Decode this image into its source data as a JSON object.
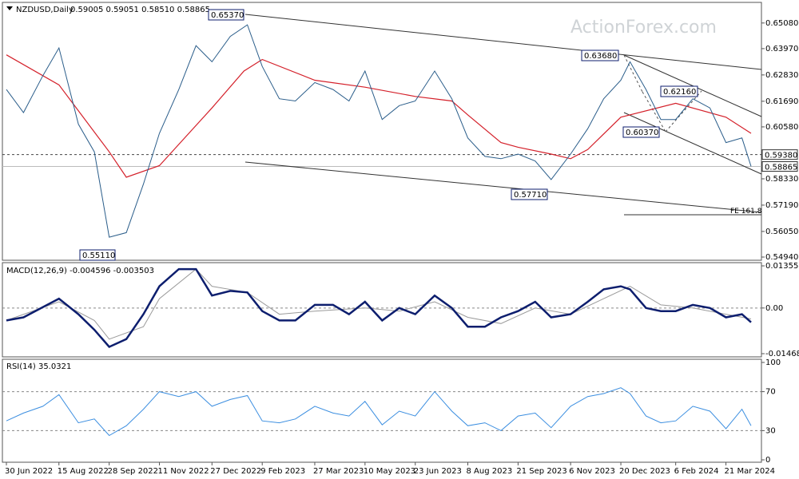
{
  "header": {
    "symbol": "NZDUSD,Daily",
    "ohlc": "0.59005 0.59051 0.58510 0.58865",
    "watermark": "ActionForex.com"
  },
  "chart_data": {
    "type": "line",
    "price_axis": [
      "0.65080",
      "0.63970",
      "0.62830",
      "0.61690",
      "0.60580",
      "0.59380",
      "0.58865",
      "0.58330",
      "0.57190",
      "0.56050",
      "0.54940"
    ],
    "price_ylim": [
      0.5494,
      0.658
    ],
    "current_price": "0.58865",
    "dashed_level": "0.59380",
    "x_ticks": [
      "30 Jun 2022",
      "15 Aug 2022",
      "28 Sep 2022",
      "11 Nov 2022",
      "27 Dec 2022",
      "9 Feb 2023",
      "27 Mar 2023",
      "10 May 2023",
      "23 Jun 2023",
      "8 Aug 2023",
      "21 Sep 2023",
      "6 Nov 2023",
      "20 Dec 2023",
      "6 Feb 2024",
      "21 Mar 2024"
    ],
    "annotations": [
      {
        "text": "0.65370",
        "value": 0.6537
      },
      {
        "text": "0.55110",
        "value": 0.5511
      },
      {
        "text": "0.63680",
        "value": 0.6368
      },
      {
        "text": "0.62160",
        "value": 0.6216
      },
      {
        "text": "0.60370",
        "value": 0.6037
      },
      {
        "text": "0.57710",
        "value": 0.5771
      },
      {
        "text": "FE 161.8",
        "value": 0.5685
      }
    ],
    "price_series": [
      {
        "date": "30 Jun 2022",
        "value": 0.622
      },
      {
        "date": "15 Jul 2022",
        "value": 0.612
      },
      {
        "date": "1 Aug 2022",
        "value": 0.628
      },
      {
        "date": "15 Aug 2022",
        "value": 0.64
      },
      {
        "date": "1 Sep 2022",
        "value": 0.607
      },
      {
        "date": "15 Sep 2022",
        "value": 0.595
      },
      {
        "date": "28 Sep 2022",
        "value": 0.558
      },
      {
        "date": "13 Oct 2022",
        "value": 0.56
      },
      {
        "date": "28 Oct 2022",
        "value": 0.581
      },
      {
        "date": "11 Nov 2022",
        "value": 0.603
      },
      {
        "date": "28 Nov 2022",
        "value": 0.622
      },
      {
        "date": "13 Dec 2022",
        "value": 0.641
      },
      {
        "date": "27 Dec 2022",
        "value": 0.634
      },
      {
        "date": "12 Jan 2023",
        "value": 0.645
      },
      {
        "date": "27 Jan 2023",
        "value": 0.65
      },
      {
        "date": "9 Feb 2023",
        "value": 0.632
      },
      {
        "date": "24 Feb 2023",
        "value": 0.618
      },
      {
        "date": "10 Mar 2023",
        "value": 0.617
      },
      {
        "date": "27 Mar 2023",
        "value": 0.625
      },
      {
        "date": "12 Apr 2023",
        "value": 0.622
      },
      {
        "date": "26 Apr 2023",
        "value": 0.617
      },
      {
        "date": "10 May 2023",
        "value": 0.63
      },
      {
        "date": "25 May 2023",
        "value": 0.609
      },
      {
        "date": "9 Jun 2023",
        "value": 0.615
      },
      {
        "date": "23 Jun 2023",
        "value": 0.617
      },
      {
        "date": "10 Jul 2023",
        "value": 0.63
      },
      {
        "date": "25 Jul 2023",
        "value": 0.618
      },
      {
        "date": "8 Aug 2023",
        "value": 0.601
      },
      {
        "date": "23 Aug 2023",
        "value": 0.593
      },
      {
        "date": "6 Sep 2023",
        "value": 0.592
      },
      {
        "date": "21 Sep 2023",
        "value": 0.594
      },
      {
        "date": "6 Oct 2023",
        "value": 0.591
      },
      {
        "date": "20 Oct 2023",
        "value": 0.583
      },
      {
        "date": "6 Nov 2023",
        "value": 0.594
      },
      {
        "date": "21 Nov 2023",
        "value": 0.605
      },
      {
        "date": "5 Dec 2023",
        "value": 0.618
      },
      {
        "date": "20 Dec 2023",
        "value": 0.626
      },
      {
        "date": "28 Dec 2023",
        "value": 0.634
      },
      {
        "date": "11 Jan 2024",
        "value": 0.622
      },
      {
        "date": "24 Jan 2024",
        "value": 0.609
      },
      {
        "date": "6 Feb 2024",
        "value": 0.609
      },
      {
        "date": "21 Feb 2024",
        "value": 0.618
      },
      {
        "date": "7 Mar 2024",
        "value": 0.614
      },
      {
        "date": "21 Mar 2024",
        "value": 0.599
      },
      {
        "date": "4 Apr 2024",
        "value": 0.601
      },
      {
        "date": "12 Apr 2024",
        "value": 0.5887
      }
    ],
    "ma_series": [
      {
        "date": "30 Jun 2022",
        "value": 0.637
      },
      {
        "date": "15 Aug 2022",
        "value": 0.624
      },
      {
        "date": "28 Sep 2022",
        "value": 0.595
      },
      {
        "date": "13 Oct 2022",
        "value": 0.584
      },
      {
        "date": "11 Nov 2022",
        "value": 0.589
      },
      {
        "date": "27 Dec 2022",
        "value": 0.614
      },
      {
        "date": "24 Jan 2023",
        "value": 0.63
      },
      {
        "date": "9 Feb 2023",
        "value": 0.635
      },
      {
        "date": "27 Mar 2023",
        "value": 0.626
      },
      {
        "date": "10 May 2023",
        "value": 0.623
      },
      {
        "date": "23 Jun 2023",
        "value": 0.619
      },
      {
        "date": "25 Jul 2023",
        "value": 0.617
      },
      {
        "date": "8 Aug 2023",
        "value": 0.611
      },
      {
        "date": "6 Sep 2023",
        "value": 0.599
      },
      {
        "date": "21 Sep 2023",
        "value": 0.597
      },
      {
        "date": "20 Oct 2023",
        "value": 0.594
      },
      {
        "date": "6 Nov 2023",
        "value": 0.592
      },
      {
        "date": "21 Nov 2023",
        "value": 0.596
      },
      {
        "date": "20 Dec 2023",
        "value": 0.61
      },
      {
        "date": "6 Feb 2024",
        "value": 0.616
      },
      {
        "date": "21 Mar 2024",
        "value": 0.61
      },
      {
        "date": "12 Apr 2024",
        "value": 0.603
      }
    ],
    "macd": {
      "label": "MACD(12,26,9) -0.004596 -0.003503",
      "axis": [
        "0.013555",
        "0.00",
        "-0.014684"
      ],
      "ylim": [
        -0.01468,
        0.01356
      ],
      "series": [
        {
          "date": "30 Jun 2022",
          "value": -0.004
        },
        {
          "date": "15 Jul 2022",
          "value": -0.003
        },
        {
          "date": "15 Aug 2022",
          "value": 0.003
        },
        {
          "date": "1 Sep 2022",
          "value": -0.002
        },
        {
          "date": "15 Sep 2022",
          "value": -0.007
        },
        {
          "date": "28 Sep 2022",
          "value": -0.0125
        },
        {
          "date": "13 Oct 2022",
          "value": -0.01
        },
        {
          "date": "28 Oct 2022",
          "value": -0.002
        },
        {
          "date": "11 Nov 2022",
          "value": 0.007
        },
        {
          "date": "28 Nov 2022",
          "value": 0.0125
        },
        {
          "date": "13 Dec 2022",
          "value": 0.0125
        },
        {
          "date": "27 Dec 2022",
          "value": 0.004
        },
        {
          "date": "12 Jan 2023",
          "value": 0.0055
        },
        {
          "date": "27 Jan 2023",
          "value": 0.005
        },
        {
          "date": "9 Feb 2023",
          "value": -0.001
        },
        {
          "date": "24 Feb 2023",
          "value": -0.004
        },
        {
          "date": "10 Mar 2023",
          "value": -0.004
        },
        {
          "date": "27 Mar 2023",
          "value": 0.001
        },
        {
          "date": "12 Apr 2023",
          "value": 0.001
        },
        {
          "date": "26 Apr 2023",
          "value": -0.002
        },
        {
          "date": "10 May 2023",
          "value": 0.002
        },
        {
          "date": "25 May 2023",
          "value": -0.004
        },
        {
          "date": "9 Jun 2023",
          "value": 0.0
        },
        {
          "date": "23 Jun 2023",
          "value": -0.002
        },
        {
          "date": "10 Jul 2023",
          "value": 0.004
        },
        {
          "date": "25 Jul 2023",
          "value": 0.0
        },
        {
          "date": "8 Aug 2023",
          "value": -0.006
        },
        {
          "date": "23 Aug 2023",
          "value": -0.006
        },
        {
          "date": "6 Sep 2023",
          "value": -0.003
        },
        {
          "date": "21 Sep 2023",
          "value": -0.001
        },
        {
          "date": "6 Oct 2023",
          "value": 0.002
        },
        {
          "date": "20 Oct 2023",
          "value": -0.003
        },
        {
          "date": "6 Nov 2023",
          "value": -0.002
        },
        {
          "date": "21 Nov 2023",
          "value": 0.002
        },
        {
          "date": "5 Dec 2023",
          "value": 0.006
        },
        {
          "date": "20 Dec 2023",
          "value": 0.007
        },
        {
          "date": "28 Dec 2023",
          "value": 0.006
        },
        {
          "date": "11 Jan 2024",
          "value": 0.0
        },
        {
          "date": "24 Jan 2024",
          "value": -0.001
        },
        {
          "date": "6 Feb 2024",
          "value": -0.001
        },
        {
          "date": "21 Feb 2024",
          "value": 0.001
        },
        {
          "date": "7 Mar 2024",
          "value": 0.0
        },
        {
          "date": "21 Mar 2024",
          "value": -0.003
        },
        {
          "date": "4 Apr 2024",
          "value": -0.002
        },
        {
          "date": "12 Apr 2024",
          "value": -0.0046
        }
      ],
      "signal": [
        {
          "date": "30 Jun 2022",
          "value": -0.004
        },
        {
          "date": "15 Aug 2022",
          "value": 0.002
        },
        {
          "date": "15 Sep 2022",
          "value": -0.004
        },
        {
          "date": "28 Sep 2022",
          "value": -0.01
        },
        {
          "date": "28 Oct 2022",
          "value": -0.006
        },
        {
          "date": "11 Nov 2022",
          "value": 0.003
        },
        {
          "date": "13 Dec 2022",
          "value": 0.0125
        },
        {
          "date": "27 Dec 2022",
          "value": 0.007
        },
        {
          "date": "27 Jan 2023",
          "value": 0.005
        },
        {
          "date": "24 Feb 2023",
          "value": -0.002
        },
        {
          "date": "27 Mar 2023",
          "value": -0.001
        },
        {
          "date": "10 May 2023",
          "value": 0.0
        },
        {
          "date": "9 Jun 2023",
          "value": -0.001
        },
        {
          "date": "10 Jul 2023",
          "value": 0.002
        },
        {
          "date": "8 Aug 2023",
          "value": -0.003
        },
        {
          "date": "6 Sep 2023",
          "value": -0.005
        },
        {
          "date": "6 Oct 2023",
          "value": 0.0
        },
        {
          "date": "6 Nov 2023",
          "value": -0.002
        },
        {
          "date": "5 Dec 2023",
          "value": 0.003
        },
        {
          "date": "28 Dec 2023",
          "value": 0.007
        },
        {
          "date": "24 Jan 2024",
          "value": 0.001
        },
        {
          "date": "21 Feb 2024",
          "value": 0.0
        },
        {
          "date": "21 Mar 2024",
          "value": -0.002
        },
        {
          "date": "12 Apr 2024",
          "value": -0.0035
        }
      ]
    },
    "rsi": {
      "label": "RSI(14) 35.0321",
      "axis": [
        "100",
        "70",
        "30",
        "0"
      ],
      "ylim": [
        0,
        100
      ],
      "series": [
        {
          "date": "30 Jun 2022",
          "value": 40
        },
        {
          "date": "15 Jul 2022",
          "value": 48
        },
        {
          "date": "1 Aug 2022",
          "value": 55
        },
        {
          "date": "15 Aug 2022",
          "value": 67
        },
        {
          "date": "1 Sep 2022",
          "value": 38
        },
        {
          "date": "15 Sep 2022",
          "value": 42
        },
        {
          "date": "28 Sep 2022",
          "value": 25
        },
        {
          "date": "13 Oct 2022",
          "value": 35
        },
        {
          "date": "28 Oct 2022",
          "value": 52
        },
        {
          "date": "11 Nov 2022",
          "value": 70
        },
        {
          "date": "28 Nov 2022",
          "value": 65
        },
        {
          "date": "13 Dec 2022",
          "value": 70
        },
        {
          "date": "27 Dec 2022",
          "value": 55
        },
        {
          "date": "12 Jan 2023",
          "value": 62
        },
        {
          "date": "27 Jan 2023",
          "value": 66
        },
        {
          "date": "9 Feb 2023",
          "value": 40
        },
        {
          "date": "24 Feb 2023",
          "value": 38
        },
        {
          "date": "10 Mar 2023",
          "value": 42
        },
        {
          "date": "27 Mar 2023",
          "value": 55
        },
        {
          "date": "12 Apr 2023",
          "value": 48
        },
        {
          "date": "26 Apr 2023",
          "value": 45
        },
        {
          "date": "10 May 2023",
          "value": 60
        },
        {
          "date": "25 May 2023",
          "value": 36
        },
        {
          "date": "9 Jun 2023",
          "value": 50
        },
        {
          "date": "23 Jun 2023",
          "value": 45
        },
        {
          "date": "10 Jul 2023",
          "value": 70
        },
        {
          "date": "25 Jul 2023",
          "value": 50
        },
        {
          "date": "8 Aug 2023",
          "value": 35
        },
        {
          "date": "23 Aug 2023",
          "value": 38
        },
        {
          "date": "6 Sep 2023",
          "value": 30
        },
        {
          "date": "21 Sep 2023",
          "value": 45
        },
        {
          "date": "6 Oct 2023",
          "value": 48
        },
        {
          "date": "20 Oct 2023",
          "value": 33
        },
        {
          "date": "6 Nov 2023",
          "value": 55
        },
        {
          "date": "21 Nov 2023",
          "value": 65
        },
        {
          "date": "5 Dec 2023",
          "value": 68
        },
        {
          "date": "20 Dec 2023",
          "value": 74
        },
        {
          "date": "28 Dec 2023",
          "value": 68
        },
        {
          "date": "11 Jan 2024",
          "value": 45
        },
        {
          "date": "24 Jan 2024",
          "value": 38
        },
        {
          "date": "6 Feb 2024",
          "value": 40
        },
        {
          "date": "21 Feb 2024",
          "value": 55
        },
        {
          "date": "7 Mar 2024",
          "value": 50
        },
        {
          "date": "21 Mar 2024",
          "value": 32
        },
        {
          "date": "4 Apr 2024",
          "value": 52
        },
        {
          "date": "12 Apr 2024",
          "value": 35
        }
      ]
    },
    "colors": {
      "price": "#2a5d8a",
      "ma": "#d4202a",
      "macd": "#0d1e6e",
      "signal": "#9a9a9a",
      "rsi": "#3b8ee0",
      "trend": "#333333",
      "label_border": "#0d1e6e"
    }
  }
}
